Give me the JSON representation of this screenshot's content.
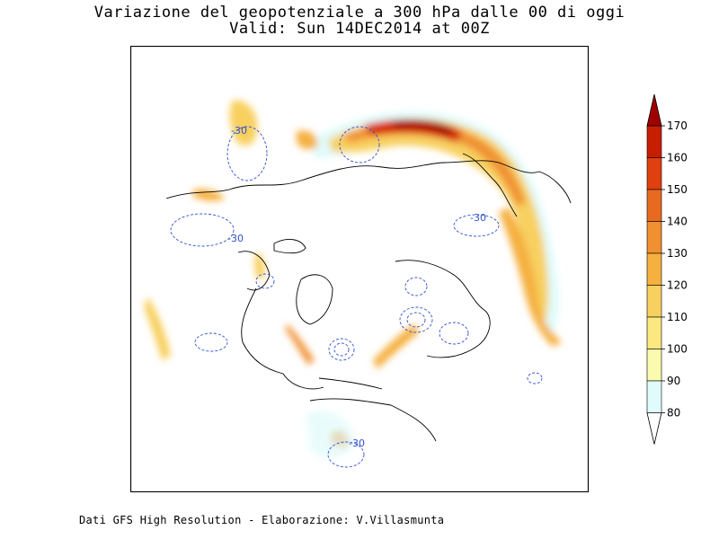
{
  "title_line1": "Variazione del geopotenziale a 300 hPa dalle 00 di oggi",
  "title_line2": "Valid: Sun 14DEC2014 at 00Z",
  "footer": "Dati GFS High Resolution - Elaborazione: V.Villasmunta",
  "contour_labels": [
    "-30",
    "-30",
    "-30",
    "-30"
  ],
  "colorbar": {
    "levels": [
      "80",
      "90",
      "100",
      "110",
      "120",
      "130",
      "140",
      "150",
      "160",
      "170"
    ],
    "colors": [
      "#e0fbfb",
      "#fbfbb0",
      "#fbe880",
      "#f8d060",
      "#f5b040",
      "#f09030",
      "#e86a20",
      "#e04010",
      "#c81e00",
      "#a00000"
    ]
  }
}
